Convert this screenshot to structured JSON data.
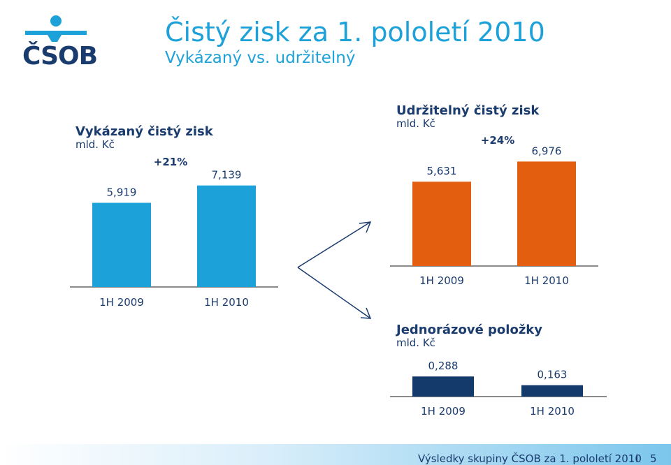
{
  "brand": {
    "logo_text": "ČSOB",
    "colors": {
      "dark": "#1a3b6e",
      "light": "#1da1d9",
      "orange": "#e35f0f",
      "navy": "#143a6b"
    }
  },
  "header": {
    "title": "Čistý zisk za 1. pololetí 2010",
    "subtitle": "Vykázaný vs. udržitelný"
  },
  "footer": {
    "text": "Výsledky skupiny ČSOB za 1. pololetí 2010",
    "separator": "I",
    "page": "5"
  },
  "chart_data": [
    {
      "type": "bar",
      "title": "Vykázaný čistý zisk",
      "unit": "mld. Kč",
      "categories": [
        "1H 2009",
        "1H 2010"
      ],
      "values": [
        5.919,
        7.139
      ],
      "value_labels": [
        "5,919",
        "7,139"
      ],
      "change_label": "+21%",
      "color": "#1da1d9"
    },
    {
      "type": "bar",
      "title": "Udržitelný čistý zisk",
      "unit": "mld. Kč",
      "categories": [
        "1H 2009",
        "1H 2010"
      ],
      "values": [
        5.631,
        6.976
      ],
      "value_labels": [
        "5,631",
        "6,976"
      ],
      "change_label": "+24%",
      "color": "#e35f0f"
    },
    {
      "type": "bar",
      "title": "Jednorázové položky",
      "unit": "mld. Kč",
      "categories": [
        "1H 2009",
        "1H 2010"
      ],
      "values": [
        0.288,
        0.163
      ],
      "value_labels": [
        "0,288",
        "0,163"
      ],
      "color": "#143a6b"
    }
  ]
}
